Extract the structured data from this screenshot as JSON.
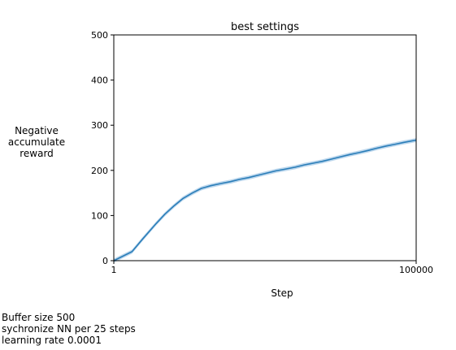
{
  "chart_data": {
    "type": "line",
    "title": "best settings",
    "xlabel": "Step",
    "ylabel_lines": [
      "Negative",
      "accumulate",
      "reward"
    ],
    "xlim": [
      1,
      100000
    ],
    "ylim": [
      0,
      500
    ],
    "x_ticks": [
      "1",
      "100000"
    ],
    "y_ticks": [
      0,
      100,
      200,
      300,
      400,
      500
    ],
    "grid": false,
    "line_color": "#2a7db8",
    "band_color": "#9fc6e6",
    "series": [
      {
        "x": [
          1,
          2,
          3,
          5,
          7,
          10,
          14,
          20,
          28,
          40,
          60,
          85,
          120,
          170,
          240,
          340,
          480,
          700,
          1000,
          1400,
          2000,
          2800,
          4000,
          5600,
          8000,
          11000,
          16000,
          22000,
          32000,
          45000,
          63000,
          100000
        ],
        "y": [
          0,
          20,
          48,
          82,
          103,
          122,
          138,
          150,
          160,
          166,
          171,
          175,
          180,
          184,
          189,
          194,
          199,
          203,
          207,
          212,
          216,
          220,
          225,
          230,
          235,
          239,
          244,
          249,
          254,
          258,
          262,
          267
        ]
      }
    ]
  },
  "captions": {
    "buffer": "Buffer size 500",
    "sync": "sychronize NN per 25 steps",
    "lr": "learning rate 0.0001"
  }
}
